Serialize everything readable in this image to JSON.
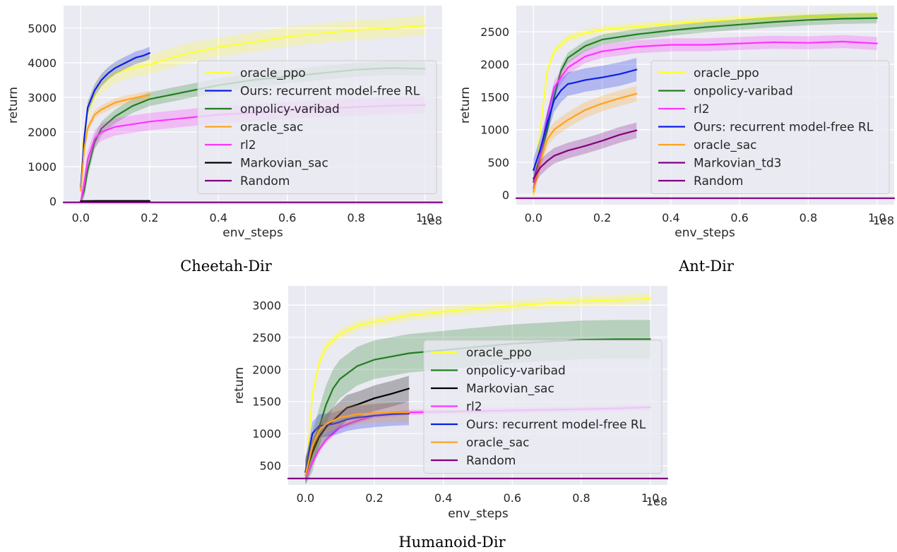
{
  "colors": {
    "oracle_ppo": "#ffff33",
    "onpolicy-varibad": "#1f7f1f",
    "rl2": "#ff33ff",
    "ours": "#0a1ee6",
    "oracle_sac": "#ffa31a",
    "markovian": "#000000",
    "markovian_td3": "#800080",
    "random": "#800080"
  },
  "chart_data": [
    {
      "type": "line",
      "caption": "Cheetah-Dir",
      "xlabel": "env_steps",
      "ylabel": "return",
      "x_scale_label": "1e8",
      "xlim": [
        -0.05,
        1.05
      ],
      "ylim": [
        -100,
        5650
      ],
      "xticks": [
        0.0,
        0.2,
        0.4,
        0.6,
        0.8,
        1.0
      ],
      "xtick_labels": [
        "0.0",
        "0.2",
        "0.4",
        "0.6",
        "0.8",
        "1.0"
      ],
      "yticks": [
        0,
        1000,
        2000,
        3000,
        4000,
        5000
      ],
      "ytick_labels": [
        "0",
        "1000",
        "2000",
        "3000",
        "4000",
        "5000"
      ],
      "grid": true,
      "legend_position": "center-right",
      "series": [
        {
          "name": "oracle_ppo",
          "color_key": "oracle_ppo",
          "band": 280,
          "x": [
            0.005,
            0.02,
            0.05,
            0.1,
            0.15,
            0.2,
            0.3,
            0.4,
            0.5,
            0.6,
            0.7,
            0.8,
            0.9,
            1.0
          ],
          "y": [
            1500,
            2600,
            3300,
            3700,
            3850,
            3950,
            4250,
            4450,
            4600,
            4750,
            4850,
            4950,
            5000,
            5080
          ]
        },
        {
          "name": "Ours: recurrent model-free RL",
          "color_key": "ours",
          "band": 180,
          "x": [
            0.0,
            0.01,
            0.02,
            0.04,
            0.06,
            0.08,
            0.1,
            0.12,
            0.14,
            0.16,
            0.18,
            0.2
          ],
          "y": [
            400,
            1800,
            2700,
            3200,
            3500,
            3700,
            3850,
            3950,
            4050,
            4150,
            4200,
            4280
          ]
        },
        {
          "name": "onpolicy-varibad",
          "color_key": "onpolicy-varibad",
          "band": 200,
          "x": [
            0.0,
            0.01,
            0.02,
            0.04,
            0.06,
            0.1,
            0.15,
            0.2,
            0.3,
            0.4,
            0.5,
            0.6,
            0.7,
            0.8,
            0.9,
            1.0
          ],
          "y": [
            0,
            300,
            900,
            1700,
            2100,
            2450,
            2750,
            2950,
            3150,
            3350,
            3500,
            3600,
            3700,
            3800,
            3850,
            3830
          ]
        },
        {
          "name": "oracle_sac",
          "color_key": "oracle_sac",
          "band": 120,
          "x": [
            0.0,
            0.01,
            0.02,
            0.04,
            0.06,
            0.1,
            0.14,
            0.2
          ],
          "y": [
            300,
            1500,
            2100,
            2500,
            2650,
            2850,
            2950,
            3070
          ]
        },
        {
          "name": "rl2",
          "color_key": "rl2",
          "band": 250,
          "x": [
            0.0,
            0.01,
            0.02,
            0.04,
            0.06,
            0.1,
            0.2,
            0.3,
            0.4,
            0.5,
            0.6,
            0.7,
            0.8,
            0.9,
            1.0
          ],
          "y": [
            0,
            500,
            1200,
            1800,
            2000,
            2150,
            2300,
            2400,
            2500,
            2550,
            2620,
            2680,
            2720,
            2760,
            2780
          ]
        },
        {
          "name": "Markovian_sac",
          "color_key": "markovian",
          "band": 0,
          "x": [
            0.0,
            0.05,
            0.1,
            0.15,
            0.2
          ],
          "y": [
            5,
            10,
            10,
            10,
            10
          ]
        },
        {
          "name": "Random",
          "color_key": "random",
          "band": 0,
          "x": [
            -0.05,
            1.05
          ],
          "y": [
            -30,
            -30
          ]
        }
      ]
    },
    {
      "type": "line",
      "caption": "Ant-Dir",
      "xlabel": "env_steps",
      "ylabel": "return",
      "x_scale_label": "1e8",
      "xlim": [
        -0.05,
        1.05
      ],
      "ylim": [
        -150,
        2900
      ],
      "xticks": [
        0.0,
        0.2,
        0.4,
        0.6,
        0.8,
        1.0
      ],
      "xtick_labels": [
        "0.0",
        "0.2",
        "0.4",
        "0.6",
        "0.8",
        "1.0"
      ],
      "yticks": [
        0,
        500,
        1000,
        1500,
        2000,
        2500
      ],
      "ytick_labels": [
        "0",
        "500",
        "1000",
        "1500",
        "2000",
        "2500"
      ],
      "grid": true,
      "legend_position": "center-right",
      "series": [
        {
          "name": "oracle_ppo",
          "color_key": "oracle_ppo",
          "band": 60,
          "x": [
            0.0,
            0.02,
            0.04,
            0.06,
            0.1,
            0.15,
            0.2,
            0.3,
            0.4,
            0.5,
            0.6,
            0.7,
            0.8,
            0.9,
            1.0
          ],
          "y": [
            0,
            1000,
            1900,
            2200,
            2400,
            2480,
            2530,
            2580,
            2620,
            2660,
            2690,
            2710,
            2730,
            2745,
            2755
          ]
        },
        {
          "name": "onpolicy-varibad",
          "color_key": "onpolicy-varibad",
          "band": 80,
          "x": [
            0.0,
            0.02,
            0.04,
            0.06,
            0.08,
            0.1,
            0.15,
            0.2,
            0.3,
            0.4,
            0.5,
            0.6,
            0.7,
            0.8,
            0.9,
            1.0
          ],
          "y": [
            200,
            600,
            1000,
            1500,
            1900,
            2100,
            2280,
            2380,
            2460,
            2520,
            2570,
            2610,
            2650,
            2680,
            2700,
            2710
          ]
        },
        {
          "name": "rl2",
          "color_key": "rl2",
          "band": 100,
          "x": [
            0.0,
            0.02,
            0.04,
            0.06,
            0.1,
            0.15,
            0.2,
            0.3,
            0.4,
            0.5,
            0.6,
            0.7,
            0.8,
            0.9,
            1.0
          ],
          "y": [
            100,
            600,
            1200,
            1650,
            1950,
            2120,
            2200,
            2270,
            2300,
            2300,
            2320,
            2340,
            2330,
            2350,
            2320
          ]
        },
        {
          "name": "Ours: recurrent model-free RL",
          "color_key": "ours",
          "band": 180,
          "x": [
            0.0,
            0.02,
            0.04,
            0.06,
            0.08,
            0.1,
            0.12,
            0.15,
            0.2,
            0.25,
            0.3
          ],
          "y": [
            380,
            700,
            1100,
            1450,
            1600,
            1700,
            1720,
            1760,
            1800,
            1850,
            1920
          ]
        },
        {
          "name": "oracle_sac",
          "color_key": "oracle_sac",
          "band": 120,
          "x": [
            0.0,
            0.02,
            0.04,
            0.06,
            0.1,
            0.15,
            0.2,
            0.25,
            0.3
          ],
          "y": [
            50,
            500,
            850,
            1000,
            1150,
            1300,
            1400,
            1480,
            1550
          ]
        },
        {
          "name": "Markovian_td3",
          "color_key": "markovian_td3",
          "band": 120,
          "x": [
            0.0,
            0.02,
            0.04,
            0.06,
            0.1,
            0.15,
            0.2,
            0.25,
            0.3
          ],
          "y": [
            250,
            420,
            520,
            600,
            680,
            750,
            830,
            920,
            990
          ]
        },
        {
          "name": "Random",
          "color_key": "random",
          "band": 0,
          "x": [
            -0.05,
            1.05
          ],
          "y": [
            -50,
            -50
          ]
        }
      ]
    },
    {
      "type": "line",
      "caption": "Humanoid-Dir",
      "xlabel": "env_steps",
      "ylabel": "return",
      "x_scale_label": "1e8",
      "xlim": [
        -0.05,
        1.05
      ],
      "ylim": [
        200,
        3300
      ],
      "xticks": [
        0.0,
        0.2,
        0.4,
        0.6,
        0.8,
        1.0
      ],
      "xtick_labels": [
        "0.0",
        "0.2",
        "0.4",
        "0.6",
        "0.8",
        "1.0"
      ],
      "yticks": [
        500,
        1000,
        1500,
        2000,
        2500,
        3000
      ],
      "ytick_labels": [
        "500",
        "1000",
        "1500",
        "2000",
        "2500",
        "3000"
      ],
      "grid": true,
      "legend_position": "center-right",
      "series": [
        {
          "name": "oracle_ppo",
          "color_key": "oracle_ppo",
          "band": 80,
          "x": [
            0.0,
            0.01,
            0.02,
            0.04,
            0.06,
            0.1,
            0.15,
            0.2,
            0.3,
            0.4,
            0.5,
            0.6,
            0.7,
            0.8,
            0.9,
            1.0
          ],
          "y": [
            350,
            900,
            1600,
            2100,
            2350,
            2550,
            2680,
            2740,
            2840,
            2900,
            2950,
            2990,
            3030,
            3060,
            3080,
            3100
          ]
        },
        {
          "name": "onpolicy-varibad",
          "color_key": "onpolicy-varibad",
          "band": 300,
          "x": [
            0.0,
            0.02,
            0.04,
            0.06,
            0.08,
            0.1,
            0.15,
            0.2,
            0.25,
            0.3,
            0.4,
            0.5,
            0.6,
            0.7,
            0.8,
            0.9,
            1.0
          ],
          "y": [
            350,
            700,
            1100,
            1450,
            1700,
            1850,
            2050,
            2150,
            2200,
            2250,
            2300,
            2350,
            2400,
            2430,
            2460,
            2470,
            2470
          ]
        },
        {
          "name": "Markovian_sac",
          "color_key": "markovian",
          "band": 200,
          "x": [
            0.0,
            0.02,
            0.04,
            0.06,
            0.08,
            0.1,
            0.12,
            0.15,
            0.2,
            0.25,
            0.3
          ],
          "y": [
            400,
            700,
            950,
            1100,
            1200,
            1300,
            1400,
            1450,
            1550,
            1620,
            1700
          ]
        },
        {
          "name": "rl2",
          "color_key": "rl2",
          "band": 40,
          "x": [
            0.0,
            0.02,
            0.04,
            0.06,
            0.08,
            0.1,
            0.15,
            0.2,
            0.3,
            0.4,
            0.5,
            0.6,
            0.7,
            0.8,
            0.9,
            1.0
          ],
          "y": [
            300,
            550,
            750,
            900,
            1000,
            1100,
            1200,
            1280,
            1330,
            1340,
            1350,
            1360,
            1370,
            1380,
            1390,
            1410
          ]
        },
        {
          "name": "Ours: recurrent model-free RL",
          "color_key": "ours",
          "band": 180,
          "x": [
            0.0,
            0.02,
            0.04,
            0.06,
            0.08,
            0.1,
            0.12,
            0.15,
            0.2,
            0.25,
            0.3
          ],
          "y": [
            400,
            1000,
            1120,
            1130,
            1150,
            1180,
            1220,
            1250,
            1280,
            1300,
            1310
          ]
        },
        {
          "name": "oracle_sac",
          "color_key": "oracle_sac",
          "band": 150,
          "x": [
            0.0,
            0.02,
            0.04,
            0.06,
            0.08,
            0.1,
            0.15,
            0.2,
            0.25,
            0.3
          ],
          "y": [
            350,
            800,
            1050,
            1150,
            1200,
            1250,
            1300,
            1320,
            1330,
            1330
          ]
        },
        {
          "name": "Random",
          "color_key": "random",
          "band": 0,
          "x": [
            -0.05,
            1.05
          ],
          "y": [
            300,
            300
          ]
        }
      ]
    }
  ]
}
